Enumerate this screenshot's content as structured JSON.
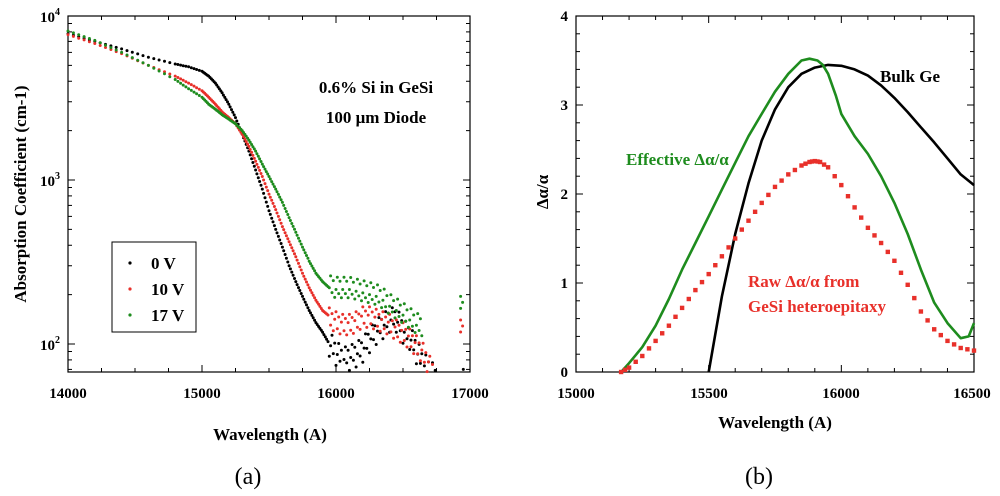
{
  "chart_data": [
    {
      "panel_label": "(a)",
      "type": "scatter",
      "xlabel": "Wavelength (A)",
      "ylabel": "Absorption Coefficient (cm-1)",
      "xlim": [
        14000,
        17000
      ],
      "ylim": [
        60,
        10000
      ],
      "yscale": "log",
      "x_ticks": [
        "14000",
        "15000",
        "16000",
        "17000"
      ],
      "y_ticks": [
        {
          "value": 10000,
          "base": "10",
          "exp": "4"
        },
        {
          "value": 1000,
          "base": "10",
          "exp": "3"
        },
        {
          "value": 100,
          "base": "10",
          "exp": "2"
        }
      ],
      "annotation_lines": [
        "0.6% Si in GeSi",
        "100 μm Diode"
      ],
      "legend_placement": "lower-left",
      "series": [
        {
          "name": "0 V",
          "color": "#000000",
          "x": [
            14000,
            14200,
            14400,
            14600,
            14800,
            14900,
            15000,
            15050,
            15100,
            15150,
            15200,
            15250,
            15300,
            15350,
            15400,
            15450,
            15500,
            15550,
            15600,
            15650,
            15700,
            15750,
            15800,
            15850,
            15900,
            15950,
            16000,
            16050,
            16100,
            16150,
            16200,
            16250,
            16300,
            16350,
            16400,
            16450,
            16500,
            16550,
            16600,
            16650,
            16700,
            16750
          ],
          "y": [
            7800,
            7000,
            6300,
            5600,
            5100,
            4900,
            4600,
            4300,
            3900,
            3400,
            2900,
            2400,
            1900,
            1500,
            1150,
            880,
            650,
            500,
            390,
            300,
            240,
            195,
            160,
            135,
            118,
            100,
            88,
            80,
            82,
            86,
            92,
            105,
            118,
            128,
            140,
            140,
            120,
            110,
            90,
            75,
            68,
            60
          ]
        },
        {
          "name": "10 V",
          "color": "#e8302a",
          "x": [
            14000,
            14200,
            14400,
            14600,
            14800,
            14900,
            15000,
            15050,
            15100,
            15150,
            15200,
            15250,
            15300,
            15350,
            15400,
            15450,
            15500,
            15550,
            15600,
            15650,
            15700,
            15750,
            15800,
            15850,
            15900,
            15950,
            16000,
            16050,
            16100,
            16150,
            16200,
            16250,
            16300,
            16350,
            16400,
            16450,
            16500,
            16550,
            16600,
            16650,
            16700,
            16750
          ],
          "y": [
            7700,
            6800,
            5900,
            5000,
            4300,
            3900,
            3500,
            3200,
            2900,
            2600,
            2400,
            2200,
            1900,
            1600,
            1300,
            1050,
            820,
            660,
            520,
            420,
            340,
            270,
            220,
            185,
            160,
            148,
            140,
            135,
            135,
            140,
            150,
            150,
            145,
            140,
            135,
            125,
            120,
            110,
            100,
            90,
            75,
            65
          ]
        },
        {
          "name": "17 V",
          "color": "#1e8c1e",
          "x": [
            14000,
            14200,
            14400,
            14600,
            14800,
            14900,
            15000,
            15050,
            15100,
            15150,
            15200,
            15250,
            15300,
            15350,
            15400,
            15450,
            15500,
            15550,
            15600,
            15650,
            15700,
            15750,
            15800,
            15850,
            15900,
            15950,
            16000,
            16050,
            16100,
            16150,
            16200,
            16250,
            16300,
            16350,
            16400,
            16450,
            16500,
            16550,
            16600,
            16650
          ],
          "y": [
            8100,
            7100,
            6000,
            5000,
            4100,
            3600,
            3200,
            2900,
            2700,
            2500,
            2350,
            2200,
            2000,
            1750,
            1500,
            1250,
            1050,
            880,
            730,
            590,
            480,
            390,
            320,
            270,
            240,
            220,
            215,
            215,
            215,
            210,
            205,
            200,
            195,
            185,
            170,
            160,
            150,
            140,
            130,
            125
          ]
        }
      ],
      "outliers": [
        {
          "series": "0 V",
          "x": 16950,
          "y": 70
        },
        {
          "series": "10 V",
          "x": 16930,
          "y": 140
        },
        {
          "series": "17 V",
          "x": 16930,
          "y": 195
        }
      ]
    },
    {
      "panel_label": "(b)",
      "type": "line",
      "xlabel": "Wavelength (A)",
      "ylabel": "Δα/α",
      "xlim": [
        15000,
        16500
      ],
      "ylim": [
        0,
        4
      ],
      "x_ticks": [
        "15000",
        "15500",
        "16000",
        "16500"
      ],
      "y_ticks": [
        "0",
        "1",
        "2",
        "3",
        "4"
      ],
      "series": [
        {
          "name": "Bulk Ge",
          "color": "#000000",
          "style": "line",
          "x": [
            15500,
            15550,
            15600,
            15650,
            15700,
            15750,
            15800,
            15850,
            15900,
            15950,
            16000,
            16050,
            16100,
            16150,
            16200,
            16250,
            16300,
            16350,
            16400,
            16450,
            16500
          ],
          "y": [
            0,
            0.85,
            1.55,
            2.12,
            2.6,
            2.95,
            3.2,
            3.35,
            3.42,
            3.45,
            3.44,
            3.4,
            3.33,
            3.22,
            3.08,
            2.92,
            2.75,
            2.58,
            2.4,
            2.22,
            2.1
          ]
        },
        {
          "name": "Effective Δα/α",
          "color": "#1e8c1e",
          "style": "line",
          "x": [
            15170,
            15200,
            15250,
            15300,
            15350,
            15400,
            15450,
            15500,
            15550,
            15600,
            15650,
            15700,
            15750,
            15800,
            15850,
            15880,
            15910,
            15930,
            15950,
            15980,
            16000,
            16050,
            16100,
            16150,
            16200,
            16250,
            16300,
            16350,
            16400,
            16450,
            16480,
            16500
          ],
          "y": [
            0,
            0.1,
            0.28,
            0.52,
            0.82,
            1.15,
            1.45,
            1.75,
            2.05,
            2.35,
            2.65,
            2.9,
            3.15,
            3.35,
            3.5,
            3.52,
            3.5,
            3.45,
            3.35,
            3.1,
            2.9,
            2.65,
            2.45,
            2.2,
            1.9,
            1.55,
            1.15,
            0.78,
            0.55,
            0.38,
            0.4,
            0.55
          ]
        },
        {
          "name": "Raw Δα/α from GeSi heteroepitaxy",
          "color": "#e8302a",
          "style": "markers",
          "x": [
            15170,
            15200,
            15250,
            15300,
            15350,
            15400,
            15450,
            15500,
            15550,
            15600,
            15650,
            15700,
            15750,
            15800,
            15850,
            15880,
            15900,
            15920,
            15950,
            16000,
            16050,
            16100,
            16150,
            16200,
            16250,
            16300,
            16350,
            16400,
            16450,
            16500
          ],
          "y": [
            0,
            0.05,
            0.18,
            0.35,
            0.52,
            0.72,
            0.92,
            1.1,
            1.3,
            1.5,
            1.7,
            1.9,
            2.08,
            2.22,
            2.32,
            2.36,
            2.37,
            2.36,
            2.3,
            2.1,
            1.85,
            1.62,
            1.45,
            1.25,
            0.98,
            0.68,
            0.48,
            0.35,
            0.27,
            0.24
          ]
        }
      ],
      "annotations": [
        {
          "text": "Bulk Ge",
          "color": "#000000"
        },
        {
          "text": "Effective Δα/α",
          "color": "#1e8c1e"
        },
        {
          "text": "Raw Δα/α from",
          "color": "#e8302a"
        },
        {
          "text": "GeSi heteroepitaxy",
          "color": "#e8302a"
        }
      ]
    }
  ]
}
